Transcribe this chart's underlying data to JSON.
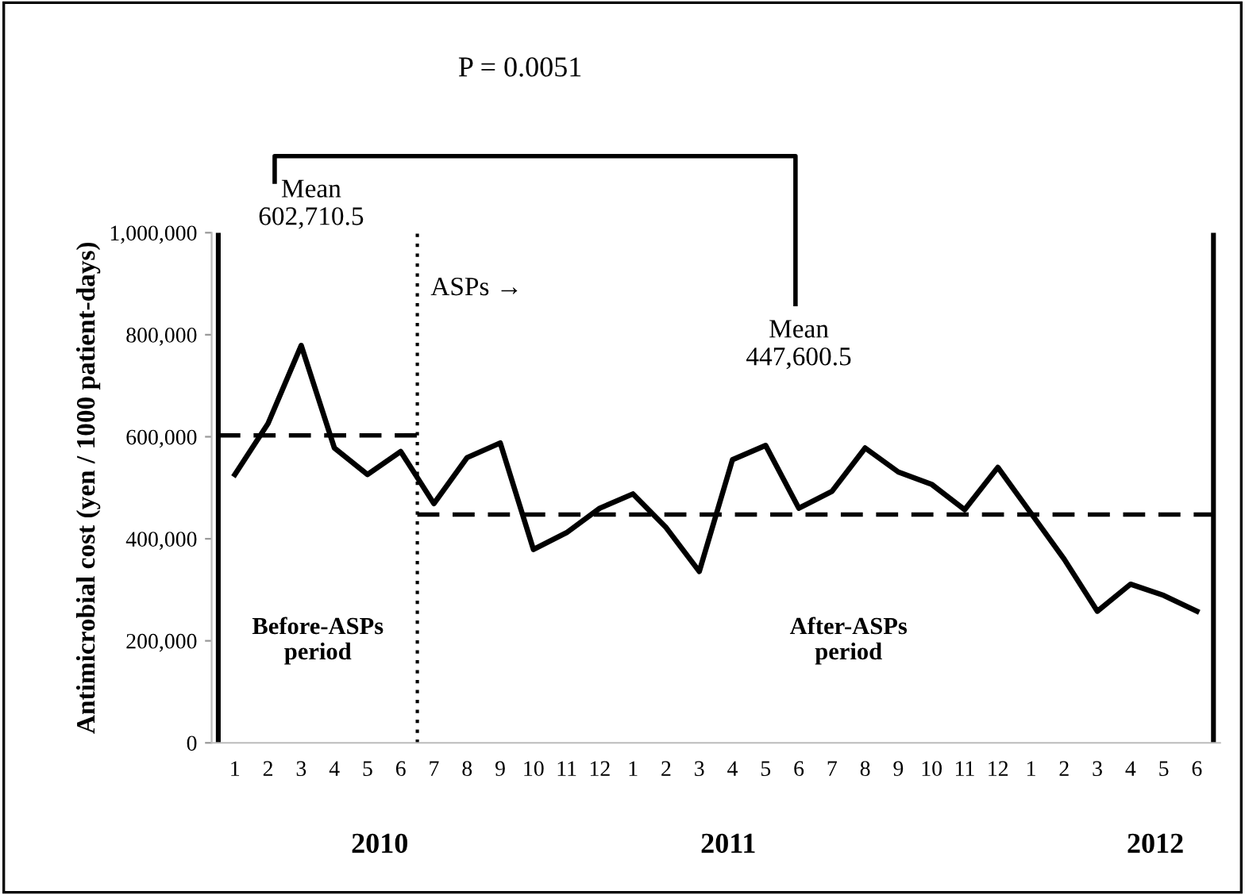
{
  "chart_data": {
    "type": "line",
    "ylabel": "Antimicrobial cost (yen / 1000 patient-days)",
    "categories": [
      "1",
      "2",
      "3",
      "4",
      "5",
      "6",
      "7",
      "8",
      "9",
      "10",
      "11",
      "12",
      "1",
      "2",
      "3",
      "4",
      "5",
      "6",
      "7",
      "8",
      "9",
      "10",
      "11",
      "12",
      "1",
      "2",
      "3",
      "4",
      "5",
      "6"
    ],
    "series": [
      {
        "color": "#000000",
        "values": [
          526000,
          626000,
          779000,
          578000,
          526000,
          571000,
          469000,
          559000,
          588000,
          379000,
          412000,
          460000,
          488000,
          422000,
          336000,
          555000,
          583000,
          460000,
          493000,
          578000,
          531000,
          507000,
          457000,
          540000,
          450000,
          360000,
          258000,
          311000,
          289000,
          258000
        ]
      }
    ],
    "ylim": [
      0,
      1000000
    ],
    "yticks": [
      {
        "value": 0,
        "label": "0"
      },
      {
        "value": 200000,
        "label": "200,000"
      },
      {
        "value": 400000,
        "label": "400,000"
      },
      {
        "value": 600000,
        "label": "600,000"
      },
      {
        "value": 800000,
        "label": "800,000"
      },
      {
        "value": 1000000,
        "label": "1,000,000"
      }
    ],
    "ref_lines": [
      {
        "axis": "x",
        "value": "7",
        "line_style": "dotted",
        "color": "#000000",
        "label": "ASPs →"
      },
      {
        "axis": "y",
        "value": 602710.5,
        "line_style": "dashed",
        "color": "#000000"
      },
      {
        "axis": "y",
        "value": 447600.5,
        "line_style": "dashed",
        "color": "#000000"
      }
    ],
    "annotations": [
      "P = 0.0051",
      "Before-ASPs\nperiod",
      "After-ASPs\nperiod",
      "2010",
      "2011",
      "2012",
      "Mean\n602,710.5",
      "Mean\n447,600.5"
    ],
    "grid": false,
    "legend": false,
    "marker": "none",
    "line_style": "solid"
  }
}
